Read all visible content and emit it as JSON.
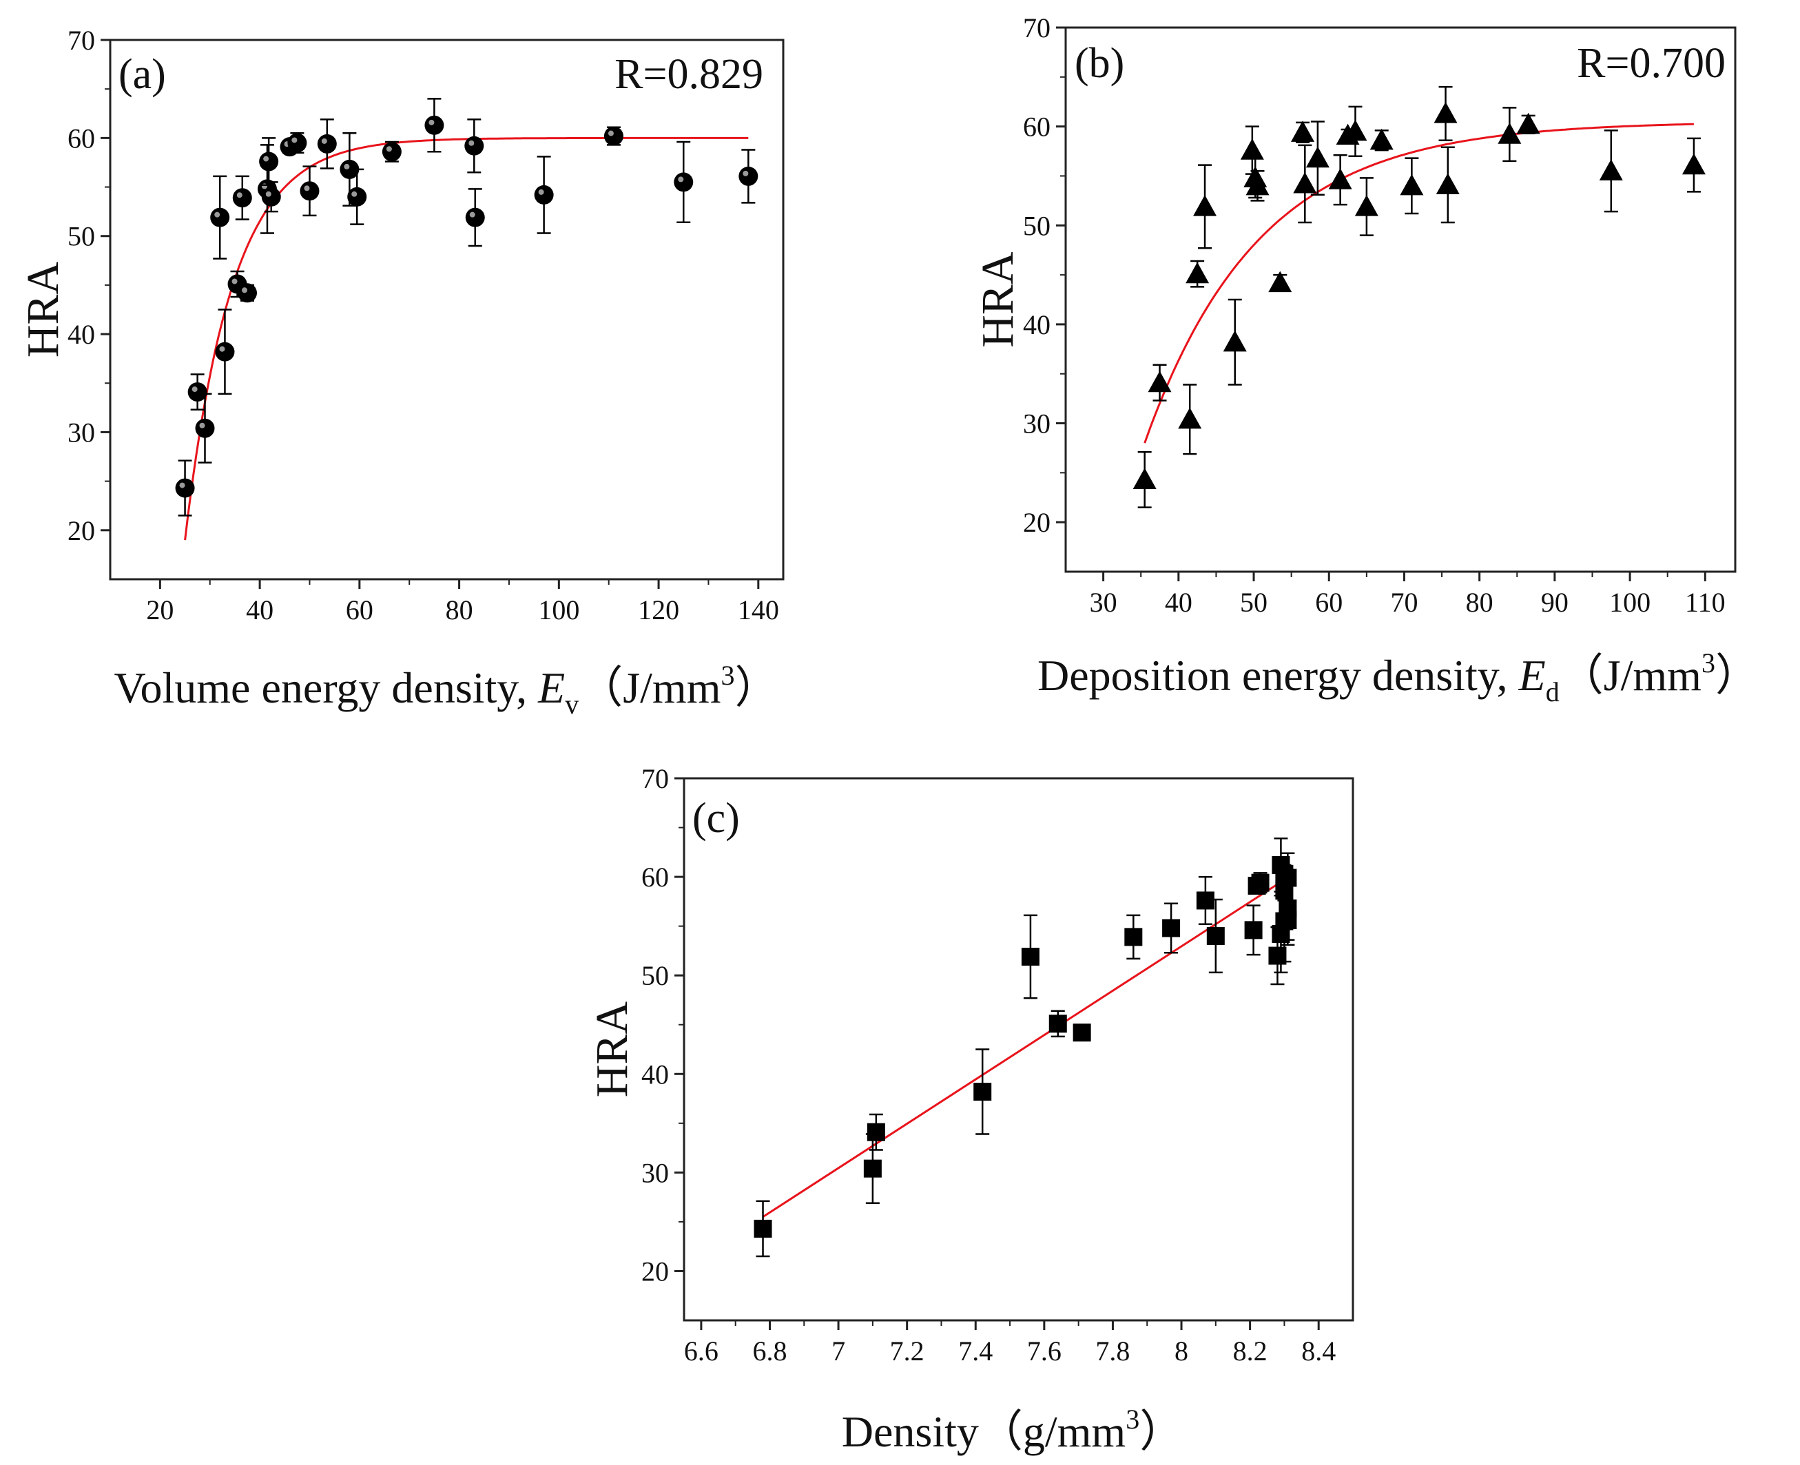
{
  "colors": {
    "fit": "#e8141c",
    "marker": "#000000",
    "frame": "#222222",
    "background": "#ffffff"
  },
  "chart_data": [
    {
      "panel": "(a)",
      "type": "scatter",
      "marker": "circle",
      "r_text": "R=0.829",
      "ylabel": "HRA",
      "xlabel": {
        "prefix": "Volume energy density, ",
        "var": "E",
        "sub": "v",
        "unit_open": "（J/mm",
        "sup": "3",
        "unit_close": "）"
      },
      "xlim": [
        10,
        145
      ],
      "ylim": [
        15,
        70
      ],
      "xticks": [
        20,
        40,
        60,
        80,
        100,
        120,
        140
      ],
      "yticks": [
        20,
        30,
        40,
        50,
        60,
        70
      ],
      "fit": {
        "model": "exponential",
        "y_max": 60,
        "a": 41,
        "k": 0.105,
        "x0": 25,
        "x_range": [
          25,
          138
        ]
      },
      "points": [
        {
          "x": 25,
          "y": 24.3,
          "err": 2.8
        },
        {
          "x": 27.5,
          "y": 34.1,
          "err": 1.8
        },
        {
          "x": 29,
          "y": 30.4,
          "err": 3.5
        },
        {
          "x": 32,
          "y": 51.9,
          "err": 4.2
        },
        {
          "x": 33,
          "y": 38.2,
          "err": 4.3
        },
        {
          "x": 35.5,
          "y": 45.1,
          "err": 1.3
        },
        {
          "x": 36.5,
          "y": 53.9,
          "err": 2.2
        },
        {
          "x": 37.5,
          "y": 44.2,
          "err": 0.8
        },
        {
          "x": 41.5,
          "y": 54.8,
          "err": 4.5
        },
        {
          "x": 41.8,
          "y": 57.6,
          "err": 2.4
        },
        {
          "x": 42.3,
          "y": 54.0,
          "err": 1.5
        },
        {
          "x": 46,
          "y": 59.1,
          "err": 0.6
        },
        {
          "x": 47.5,
          "y": 59.5,
          "err": 1.0
        },
        {
          "x": 50,
          "y": 54.6,
          "err": 2.5
        },
        {
          "x": 53.5,
          "y": 59.4,
          "err": 2.5
        },
        {
          "x": 58,
          "y": 56.8,
          "err": 3.7
        },
        {
          "x": 59.5,
          "y": 54.0,
          "err": 2.8
        },
        {
          "x": 66.5,
          "y": 58.6,
          "err": 1.0
        },
        {
          "x": 75,
          "y": 61.3,
          "err": 2.7
        },
        {
          "x": 83,
          "y": 59.2,
          "err": 2.7
        },
        {
          "x": 83.2,
          "y": 51.9,
          "err": 2.9
        },
        {
          "x": 97,
          "y": 54.2,
          "err": 3.9
        },
        {
          "x": 111,
          "y": 60.2,
          "err": 0.9
        },
        {
          "x": 125,
          "y": 55.5,
          "err": 4.1
        },
        {
          "x": 138,
          "y": 56.1,
          "err": 2.7
        }
      ]
    },
    {
      "panel": "(b)",
      "type": "scatter",
      "marker": "triangle",
      "r_text": "R=0.700",
      "ylabel": "HRA",
      "xlabel": {
        "prefix": "Deposition energy density, ",
        "var": "E",
        "sub": "d",
        "unit_open": "（J/mm",
        "sup": "3",
        "unit_close": "）"
      },
      "xlim": [
        25,
        114
      ],
      "ylim": [
        15,
        70
      ],
      "xticks": [
        30,
        40,
        50,
        60,
        70,
        80,
        90,
        100,
        110
      ],
      "yticks": [
        20,
        30,
        40,
        50,
        60,
        70
      ],
      "fit": {
        "model": "exponential",
        "y_max": 60.5,
        "a": 32.5,
        "k": 0.066,
        "x0": 35.5,
        "x_range": [
          35.5,
          108.5
        ]
      },
      "points": [
        {
          "x": 35.5,
          "y": 24.3,
          "err": 2.8
        },
        {
          "x": 37.5,
          "y": 34.1,
          "err": 1.8
        },
        {
          "x": 41.5,
          "y": 30.4,
          "err": 3.5
        },
        {
          "x": 42.5,
          "y": 45.1,
          "err": 1.3
        },
        {
          "x": 43.5,
          "y": 51.9,
          "err": 4.2
        },
        {
          "x": 47.5,
          "y": 38.2,
          "err": 4.3
        },
        {
          "x": 49.8,
          "y": 57.6,
          "err": 2.4
        },
        {
          "x": 50.2,
          "y": 54.8,
          "err": 2.0
        },
        {
          "x": 50.5,
          "y": 54.0,
          "err": 1.5
        },
        {
          "x": 53.5,
          "y": 44.2,
          "err": 0.8
        },
        {
          "x": 56.5,
          "y": 59.4,
          "err": 1.0
        },
        {
          "x": 56.8,
          "y": 54.2,
          "err": 3.9
        },
        {
          "x": 58.5,
          "y": 56.8,
          "err": 3.7
        },
        {
          "x": 61.5,
          "y": 54.6,
          "err": 2.5
        },
        {
          "x": 62.5,
          "y": 59.1,
          "err": 0.6
        },
        {
          "x": 63.5,
          "y": 59.5,
          "err": 2.5
        },
        {
          "x": 65,
          "y": 51.9,
          "err": 2.9
        },
        {
          "x": 67,
          "y": 58.6,
          "err": 1.0
        },
        {
          "x": 71,
          "y": 54.0,
          "err": 2.8
        },
        {
          "x": 75.5,
          "y": 61.3,
          "err": 2.7
        },
        {
          "x": 75.8,
          "y": 54.1,
          "err": 3.8
        },
        {
          "x": 84,
          "y": 59.2,
          "err": 2.7
        },
        {
          "x": 86.5,
          "y": 60.2,
          "err": 0.9
        },
        {
          "x": 97.5,
          "y": 55.5,
          "err": 4.1
        },
        {
          "x": 108.5,
          "y": 56.1,
          "err": 2.7
        }
      ]
    },
    {
      "panel": "(c)",
      "type": "scatter",
      "marker": "square",
      "ylabel": "HRA",
      "xlabel": {
        "prefix": "Density",
        "var": "",
        "sub": "",
        "unit_open": "（g/mm",
        "sup": "3",
        "unit_close": "）"
      },
      "xlim": [
        6.55,
        8.5
      ],
      "ylim": [
        15,
        70
      ],
      "xticks": [
        6.6,
        6.8,
        7.0,
        7.2,
        7.4,
        7.6,
        7.8,
        8.0,
        8.2,
        8.4
      ],
      "yticks": [
        20,
        30,
        40,
        50,
        60,
        70
      ],
      "fit": {
        "model": "linear",
        "x_range": [
          6.78,
          8.3
        ],
        "y_range": [
          25.5,
          59.7
        ]
      },
      "points": [
        {
          "x": 6.78,
          "y": 24.3,
          "err": 2.8
        },
        {
          "x": 7.1,
          "y": 30.4,
          "err": 3.5
        },
        {
          "x": 7.11,
          "y": 34.1,
          "err": 1.8
        },
        {
          "x": 7.42,
          "y": 38.2,
          "err": 4.3
        },
        {
          "x": 7.56,
          "y": 51.9,
          "err": 4.2
        },
        {
          "x": 7.64,
          "y": 45.1,
          "err": 1.3
        },
        {
          "x": 7.71,
          "y": 44.2,
          "err": 0.8
        },
        {
          "x": 7.86,
          "y": 53.9,
          "err": 2.2
        },
        {
          "x": 7.97,
          "y": 54.8,
          "err": 2.5
        },
        {
          "x": 8.07,
          "y": 57.6,
          "err": 2.4
        },
        {
          "x": 8.1,
          "y": 54.0,
          "err": 3.7
        },
        {
          "x": 8.21,
          "y": 54.6,
          "err": 2.5
        },
        {
          "x": 8.22,
          "y": 59.1,
          "err": 0.6
        },
        {
          "x": 8.23,
          "y": 59.4,
          "err": 1.0
        },
        {
          "x": 8.28,
          "y": 52.0,
          "err": 2.9
        },
        {
          "x": 8.29,
          "y": 61.2,
          "err": 2.7
        },
        {
          "x": 8.29,
          "y": 54.2,
          "err": 3.9
        },
        {
          "x": 8.3,
          "y": 55.5,
          "err": 4.1
        },
        {
          "x": 8.3,
          "y": 58.6,
          "err": 1.0
        },
        {
          "x": 8.3,
          "y": 60.3,
          "err": 0.9
        },
        {
          "x": 8.31,
          "y": 56.8,
          "err": 3.7
        },
        {
          "x": 8.31,
          "y": 59.9,
          "err": 2.5
        },
        {
          "x": 8.31,
          "y": 55.6,
          "err": 2.0
        }
      ]
    }
  ]
}
